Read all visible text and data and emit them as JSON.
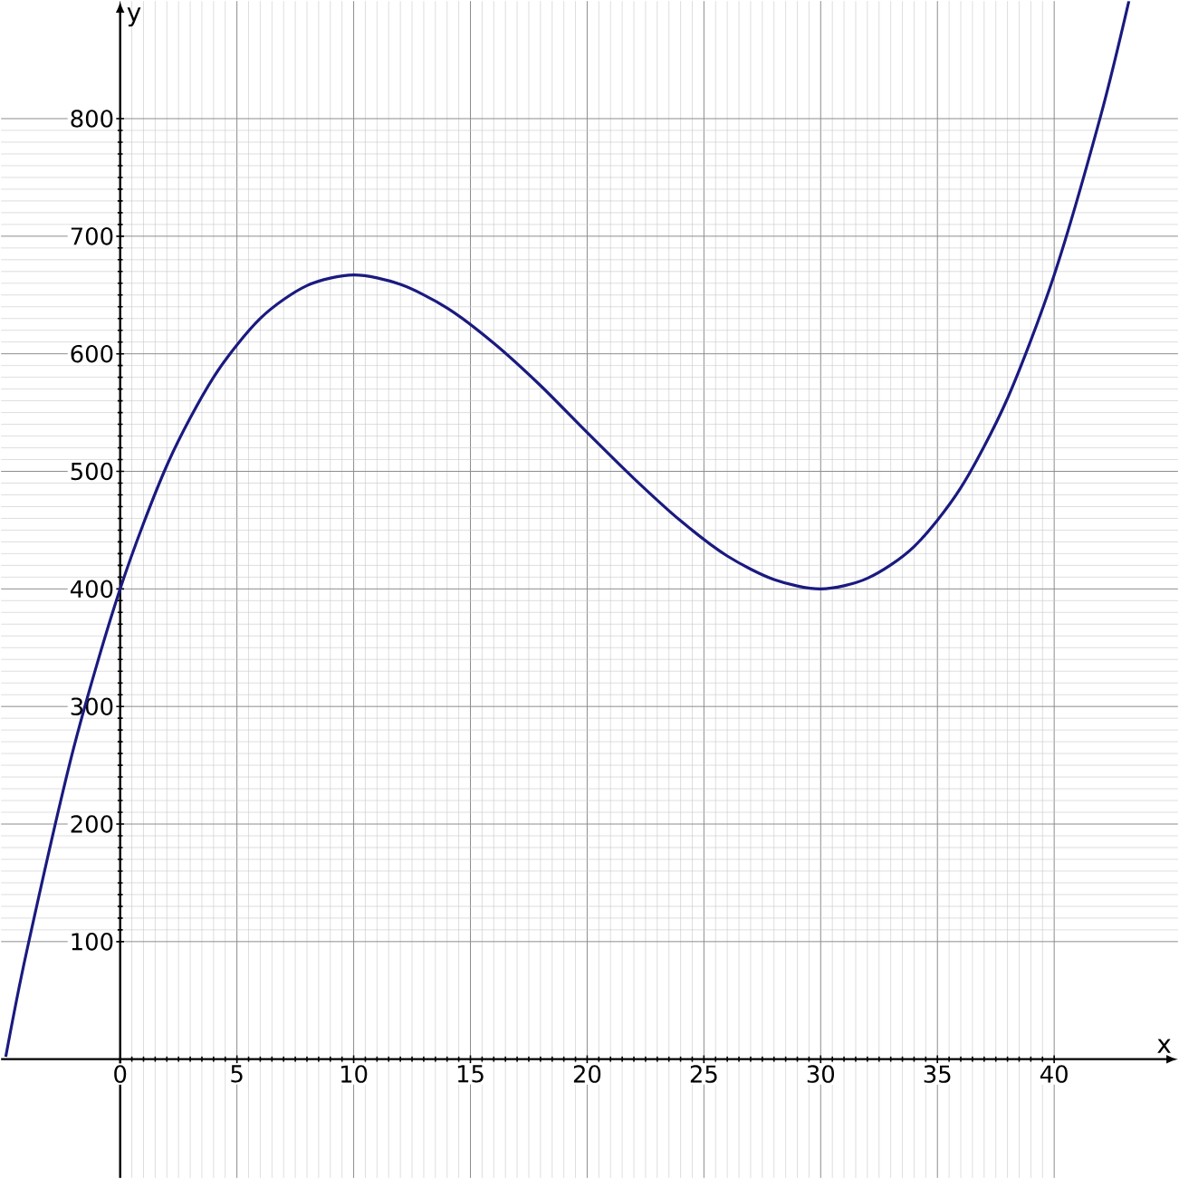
{
  "chart_data": {
    "type": "line",
    "xlabel": "x",
    "ylabel": "y",
    "x": [
      -4.9,
      -4,
      -2,
      0,
      2,
      4,
      6,
      8,
      10,
      12,
      14,
      16,
      18,
      20,
      22,
      24,
      26,
      28,
      30,
      32,
      34,
      36,
      38,
      40,
      42,
      43.2
    ],
    "values": [
      2,
      92,
      264,
      400,
      505,
      580,
      630,
      658,
      667,
      659,
      639,
      609,
      573,
      533,
      494,
      458,
      428,
      408,
      400,
      409,
      436,
      486,
      562,
      667,
      803,
      900
    ],
    "color": "#1a1a80",
    "xlim": [
      -5.1,
      45.3
    ],
    "ylim": [
      -101,
      900
    ],
    "xticks": [
      0,
      5,
      10,
      15,
      20,
      25,
      30,
      35,
      40
    ],
    "yticks": [
      100,
      200,
      300,
      400,
      500,
      600,
      700,
      800
    ],
    "grid": true,
    "marker": "none",
    "line_style": "solid"
  }
}
